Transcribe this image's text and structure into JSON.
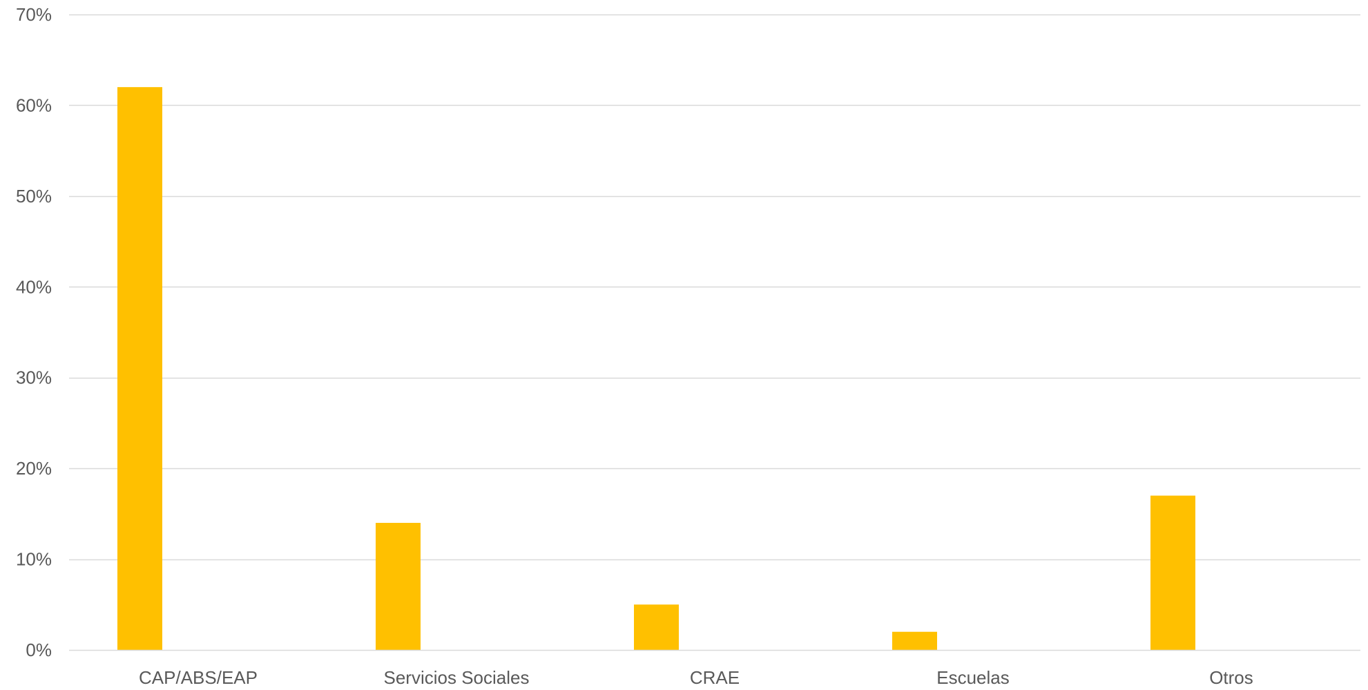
{
  "chart_data": {
    "type": "bar",
    "title": "",
    "xlabel": "",
    "ylabel": "",
    "categories": [
      "CAP/ABS/EAP",
      "Servicios Sociales",
      "CRAE",
      "Escuelas",
      "Otros"
    ],
    "values": [
      62,
      14,
      5,
      2,
      17
    ],
    "value_unit": "%",
    "ylim": [
      0,
      70
    ],
    "yticks": [
      0,
      10,
      20,
      30,
      40,
      50,
      60,
      70
    ],
    "ytick_labels": [
      "0%",
      "10%",
      "20%",
      "30%",
      "40%",
      "50%",
      "60%",
      "70%"
    ],
    "grid": "horizontal",
    "legend": "none",
    "colors": {
      "bar": "#FFC000",
      "grid": "#D9D9D9",
      "axis": "#D9D9D9",
      "text": "#595959"
    }
  }
}
